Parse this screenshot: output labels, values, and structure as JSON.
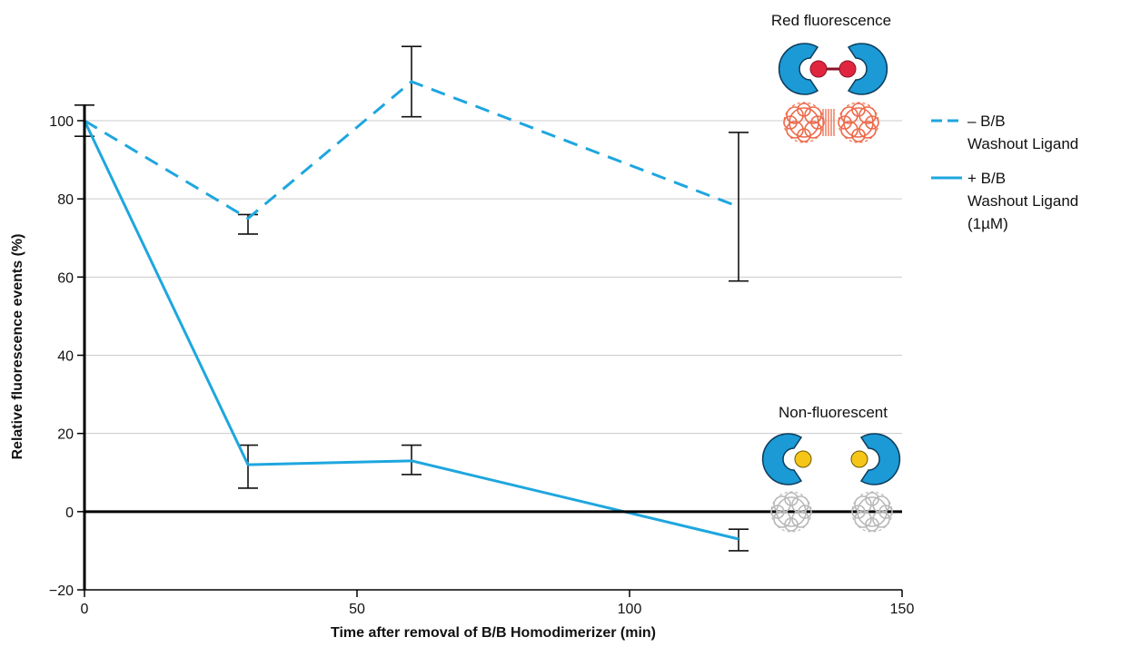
{
  "chart_data": {
    "type": "line",
    "title": "",
    "xlabel": "Time after removal of B/B Homodimerizer (min)",
    "ylabel": "Relative fluorescence events (%)",
    "xlim": [
      0,
      150
    ],
    "ylim": [
      -20,
      100
    ],
    "x_ticks": [
      0,
      50,
      100,
      150
    ],
    "y_ticks": [
      -20,
      0,
      20,
      40,
      60,
      80,
      100
    ],
    "grid": true,
    "legend_position": "right",
    "series": [
      {
        "name": "– B/B Washout Ligand",
        "legend_lines": [
          "– B/B",
          "Washout Ligand"
        ],
        "style": "dashed",
        "color": "#1ea6df",
        "x": [
          0,
          30,
          60,
          120
        ],
        "y": [
          100,
          75,
          110,
          78
        ],
        "err_low": [
          null,
          71,
          101,
          59
        ],
        "err_high": [
          null,
          76,
          119,
          97
        ]
      },
      {
        "name": "+ B/B Washout Ligand (1µM)",
        "legend_lines": [
          "+ B/B",
          "Washout Ligand",
          "(1µM)"
        ],
        "style": "solid",
        "color": "#1ea6df",
        "x": [
          0,
          30,
          60,
          120
        ],
        "y": [
          100,
          12,
          13,
          -7
        ],
        "err_low": [
          96,
          6,
          9.5,
          -10
        ],
        "err_high": [
          104,
          17,
          17,
          -4.5
        ]
      }
    ],
    "annotations": [
      "Red fluorescence",
      "Non-fluorescent"
    ]
  },
  "colors": {
    "line": "#1ea6df",
    "protein": "#1b9ad6",
    "dimer_dot": "#e0263f",
    "fluor_red": "#ee6a4a",
    "ligand": "#f5c518",
    "nonfluor_gray": "#b9b9b9",
    "grid": "#cccccc"
  },
  "icons": [
    "protein-dimer-red-icon",
    "protein-monomer-ligand-icon"
  ]
}
